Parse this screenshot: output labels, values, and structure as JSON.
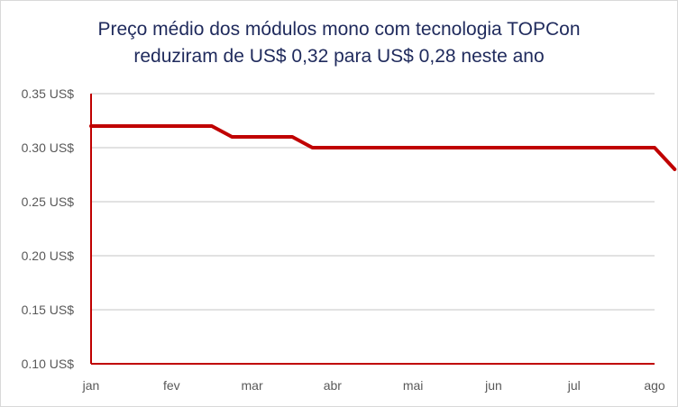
{
  "chart_data": {
    "type": "line",
    "title": [
      "Preço médio dos módulos mono com tecnologia TOPCon",
      "reduziram de US$ 0,32 para US$ 0,28 neste ano"
    ],
    "categories": [
      "jan",
      "fev",
      "mar",
      "abr",
      "mai",
      "jun",
      "jul",
      "ago"
    ],
    "y_tick_labels": [
      "0.35 US$",
      "0.30 US$",
      "0.25 US$",
      "0.20 US$",
      "0.15 US$",
      "0.10 US$"
    ],
    "y_ticks": [
      0.35,
      0.3,
      0.25,
      0.2,
      0.15,
      0.1
    ],
    "ylim": [
      0.1,
      0.35
    ],
    "grid": true,
    "series": [
      {
        "color": "#c00000",
        "x": [
          1,
          2.5,
          2.75,
          3.5,
          3.75,
          8,
          8.25
        ],
        "y": [
          0.32,
          0.32,
          0.31,
          0.31,
          0.3,
          0.3,
          0.28
        ]
      }
    ],
    "axis_color": "#c00000",
    "grid_color": "#d9d9d9"
  }
}
